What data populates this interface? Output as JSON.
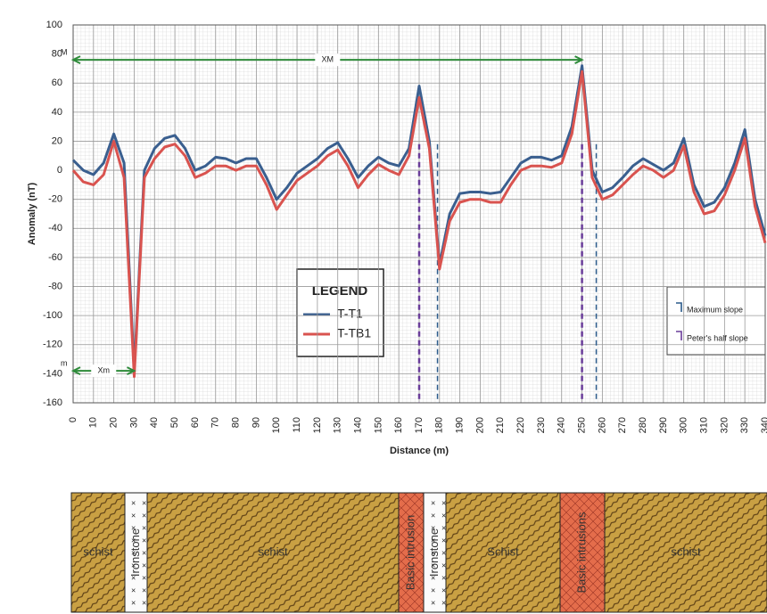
{
  "chart_data": {
    "type": "line",
    "x_label": "Distance (m)",
    "y_label": "Anomaly (nT)",
    "x": [
      0,
      5,
      10,
      15,
      20,
      25,
      30,
      35,
      40,
      45,
      50,
      55,
      60,
      65,
      70,
      75,
      80,
      85,
      90,
      95,
      100,
      105,
      110,
      115,
      120,
      125,
      130,
      135,
      140,
      145,
      150,
      155,
      160,
      165,
      170,
      175,
      180,
      185,
      190,
      195,
      200,
      205,
      210,
      215,
      220,
      225,
      230,
      235,
      240,
      245,
      250,
      255,
      260,
      265,
      270,
      275,
      280,
      285,
      290,
      295,
      300,
      305,
      310,
      315,
      320,
      325,
      330,
      335,
      340
    ],
    "series": [
      {
        "name": "T-T1",
        "color": "#3a5f8f",
        "values": [
          7,
          0,
          -3,
          5,
          25,
          5,
          -138,
          0,
          15,
          22,
          24,
          15,
          0,
          3,
          9,
          8,
          5,
          8,
          8,
          -5,
          -20,
          -12,
          -2,
          3,
          8,
          15,
          19,
          8,
          -5,
          3,
          9,
          5,
          3,
          15,
          58,
          20,
          -65,
          -30,
          -16,
          -15,
          -15,
          -16,
          -15,
          -5,
          5,
          9,
          9,
          7,
          10,
          30,
          72,
          0,
          -15,
          -12,
          -5,
          3,
          8,
          4,
          0,
          5,
          22,
          -10,
          -25,
          -22,
          -12,
          5,
          28,
          -20,
          -45
        ]
      },
      {
        "name": "T-TB1",
        "color": "#d9534f",
        "values": [
          0,
          -8,
          -10,
          -3,
          20,
          -5,
          -142,
          -5,
          8,
          16,
          18,
          10,
          -5,
          -2,
          3,
          3,
          0,
          3,
          3,
          -10,
          -27,
          -17,
          -7,
          -2,
          3,
          10,
          14,
          3,
          -12,
          -3,
          4,
          0,
          -3,
          10,
          50,
          15,
          -68,
          -35,
          -22,
          -20,
          -20,
          -22,
          -22,
          -10,
          0,
          3,
          3,
          2,
          5,
          25,
          68,
          -5,
          -20,
          -17,
          -10,
          -3,
          3,
          0,
          -5,
          0,
          17,
          -15,
          -30,
          -28,
          -17,
          0,
          22,
          -25,
          -50
        ]
      }
    ],
    "xlim": [
      0,
      340
    ],
    "xticks": [
      0,
      10,
      20,
      30,
      40,
      50,
      60,
      70,
      80,
      90,
      100,
      110,
      120,
      130,
      140,
      150,
      160,
      170,
      180,
      190,
      200,
      210,
      220,
      230,
      240,
      250,
      260,
      270,
      280,
      290,
      300,
      310,
      320,
      330,
      340
    ],
    "ylim": [
      -160,
      100
    ],
    "yticks": [
      -160,
      -140,
      -120,
      -100,
      -80,
      -60,
      -40,
      -20,
      0,
      20,
      40,
      60,
      80,
      100
    ],
    "grid": true,
    "legend_title": "LEGEND",
    "annotations": [
      {
        "label": "XM",
        "end_label": "M",
        "y": 76,
        "x": [
          0,
          250
        ],
        "color": "#2e8b3a"
      },
      {
        "label": "Xm",
        "end_label": "m",
        "y": -138,
        "x": [
          0,
          30
        ],
        "color": "#2e8b3a"
      }
    ],
    "slope_legend": [
      {
        "label": "Maximum slope",
        "color": "#2a5a8a",
        "x": [
          179,
          257
        ]
      },
      {
        "label": "Peter's half slope",
        "color": "#6a3d9a",
        "x": [
          170,
          250
        ]
      }
    ]
  },
  "section": {
    "units": [
      {
        "label": "schist"
      },
      {
        "label": "Ironstone"
      },
      {
        "label": "schist"
      },
      {
        "label": "Basic intrusion"
      },
      {
        "label": "Ironstone"
      },
      {
        "label": "Schist"
      },
      {
        "label": "Basic intrusions"
      },
      {
        "label": "schist"
      }
    ]
  }
}
